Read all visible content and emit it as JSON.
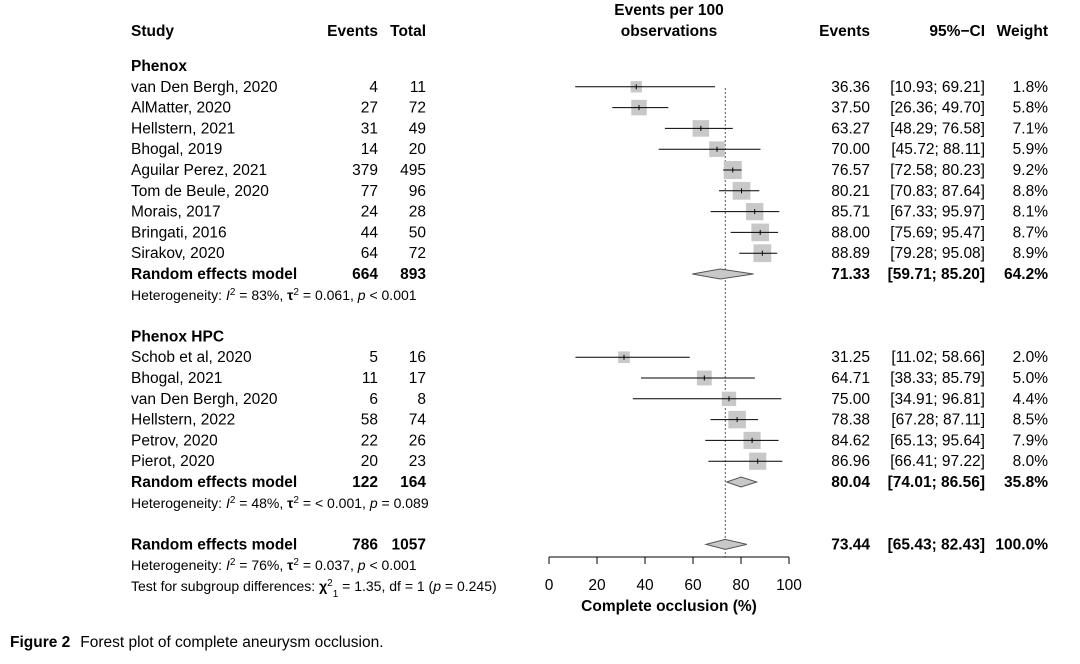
{
  "caption": {
    "figure_label": "Figure 2",
    "text": "Forest plot of complete aneurysm occlusion."
  },
  "colors": {
    "square": "#c8c8c8",
    "diamond": "#c8c8c8",
    "line": "#000000",
    "reference": "#555555"
  },
  "chart_data": {
    "type": "forest",
    "headers": {
      "study": "Study",
      "events": "Events",
      "total": "Total",
      "plot_line1": "Events per 100",
      "plot_line2": "observations",
      "est_events": "Events",
      "ci": "95%−CI",
      "weight": "Weight"
    },
    "xlabel": "Complete occlusion (%)",
    "xlim": [
      0,
      100
    ],
    "xticks": [
      0,
      20,
      40,
      60,
      80,
      100
    ],
    "reference_line": 73.44,
    "groups": [
      {
        "name": "Phenox",
        "studies": [
          {
            "study": "van Den Bergh, 2020",
            "events": "4",
            "total": "11",
            "est": 36.36,
            "lo": 10.93,
            "hi": 69.21,
            "est_text": "36.36",
            "ci_text": "[10.93; 69.21]",
            "weight": "1.8%"
          },
          {
            "study": "AlMatter, 2020",
            "events": "27",
            "total": "72",
            "est": 37.5,
            "lo": 26.36,
            "hi": 49.7,
            "est_text": "37.50",
            "ci_text": "[26.36; 49.70]",
            "weight": "5.8%"
          },
          {
            "study": "Hellstern, 2021",
            "events": "31",
            "total": "49",
            "est": 63.27,
            "lo": 48.29,
            "hi": 76.58,
            "est_text": "63.27",
            "ci_text": "[48.29; 76.58]",
            "weight": "7.1%"
          },
          {
            "study": "Bhogal, 2019",
            "events": "14",
            "total": "20",
            "est": 70.0,
            "lo": 45.72,
            "hi": 88.11,
            "est_text": "70.00",
            "ci_text": "[45.72; 88.11]",
            "weight": "5.9%"
          },
          {
            "study": "Aguilar Perez, 2021",
            "events": "379",
            "total": "495",
            "est": 76.57,
            "lo": 72.58,
            "hi": 80.23,
            "est_text": "76.57",
            "ci_text": "[72.58; 80.23]",
            "weight": "9.2%"
          },
          {
            "study": "Tom de Beule, 2020",
            "events": "77",
            "total": "96",
            "est": 80.21,
            "lo": 70.83,
            "hi": 87.64,
            "est_text": "80.21",
            "ci_text": "[70.83; 87.64]",
            "weight": "8.8%"
          },
          {
            "study": "Morais, 2017",
            "events": "24",
            "total": "28",
            "est": 85.71,
            "lo": 67.33,
            "hi": 95.97,
            "est_text": "85.71",
            "ci_text": "[67.33; 95.97]",
            "weight": "8.1%"
          },
          {
            "study": "Bringati, 2016",
            "events": "44",
            "total": "50",
            "est": 88.0,
            "lo": 75.69,
            "hi": 95.47,
            "est_text": "88.00",
            "ci_text": "[75.69; 95.47]",
            "weight": "8.7%"
          },
          {
            "study": "Sirakov, 2020",
            "events": "64",
            "total": "72",
            "est": 88.89,
            "lo": 79.28,
            "hi": 95.08,
            "est_text": "88.89",
            "ci_text": "[79.28; 95.08]",
            "weight": "8.9%"
          }
        ],
        "model": {
          "label": "Random effects model",
          "events": "664",
          "total": "893",
          "est": 71.33,
          "lo": 59.71,
          "hi": 85.2,
          "est_text": "71.33",
          "ci_text": "[59.71; 85.20]",
          "weight": "64.2%"
        },
        "heterogeneity": {
          "prefix": "Heterogeneity: ",
          "i2": " = 83%, ",
          "tau2": " = 0.061, ",
          "p": " < 0.001"
        }
      },
      {
        "name": "Phenox HPC",
        "studies": [
          {
            "study": "Schob et al, 2020",
            "events": "5",
            "total": "16",
            "est": 31.25,
            "lo": 11.02,
            "hi": 58.66,
            "est_text": "31.25",
            "ci_text": "[11.02; 58.66]",
            "weight": "2.0%"
          },
          {
            "study": "Bhogal, 2021",
            "events": "11",
            "total": "17",
            "est": 64.71,
            "lo": 38.33,
            "hi": 85.79,
            "est_text": "64.71",
            "ci_text": "[38.33; 85.79]",
            "weight": "5.0%"
          },
          {
            "study": "van Den Bergh, 2020",
            "events": "6",
            "total": "8",
            "est": 75.0,
            "lo": 34.91,
            "hi": 96.81,
            "est_text": "75.00",
            "ci_text": "[34.91; 96.81]",
            "weight": "4.4%"
          },
          {
            "study": "Hellstern, 2022",
            "events": "58",
            "total": "74",
            "est": 78.38,
            "lo": 67.28,
            "hi": 87.11,
            "est_text": "78.38",
            "ci_text": "[67.28; 87.11]",
            "weight": "8.5%"
          },
          {
            "study": "Petrov, 2020",
            "events": "22",
            "total": "26",
            "est": 84.62,
            "lo": 65.13,
            "hi": 95.64,
            "est_text": "84.62",
            "ci_text": "[65.13; 95.64]",
            "weight": "7.9%"
          },
          {
            "study": "Pierot, 2020",
            "events": "20",
            "total": "23",
            "est": 86.96,
            "lo": 66.41,
            "hi": 97.22,
            "est_text": "86.96",
            "ci_text": "[66.41; 97.22]",
            "weight": "8.0%"
          }
        ],
        "model": {
          "label": "Random effects model",
          "events": "122",
          "total": "164",
          "est": 80.04,
          "lo": 74.01,
          "hi": 86.56,
          "est_text": "80.04",
          "ci_text": "[74.01; 86.56]",
          "weight": "35.8%"
        },
        "heterogeneity": {
          "prefix": "Heterogeneity: ",
          "i2": " = 48%, ",
          "tau2": " = < 0.001, ",
          "p": " = 0.089"
        }
      }
    ],
    "overall": {
      "label": "Random effects model",
      "events": "786",
      "total": "1057",
      "est": 73.44,
      "lo": 65.43,
      "hi": 82.43,
      "est_text": "73.44",
      "ci_text": "[65.43; 82.43]",
      "weight": "100.0%",
      "heterogeneity": {
        "prefix": "Heterogeneity: ",
        "i2": " = 76%, ",
        "tau2": " = 0.037, ",
        "p": " < 0.001"
      },
      "subgroup_test": {
        "prefix": "Test for subgroup differences: ",
        "chi": " = 1.35, df = 1 (",
        "p": " = 0.245)"
      }
    }
  }
}
